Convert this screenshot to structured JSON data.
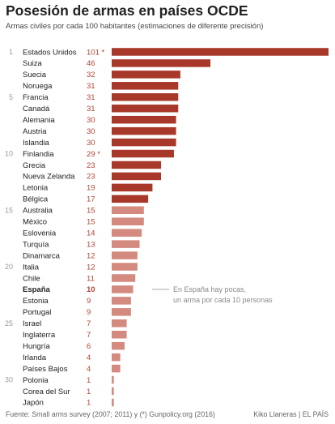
{
  "header": {
    "title": "Posesión de armas en países OCDE",
    "subtitle": "Armas civiles por cada 100 habitantes (estimaciones de diferente precisión)"
  },
  "footer": {
    "source": "Fuente: Small arms survey (2007; 2011) y (*) Gunpolicy.org (2016)",
    "credit": "Kiko Llaneras  |  EL PAÍS"
  },
  "colors": {
    "dark_bar": "#a8392a",
    "light_bar": "#d48a7e",
    "value_text": "#b04535"
  },
  "chart_data": {
    "type": "bar",
    "orientation": "horizontal",
    "title": "Posesión de armas en países OCDE",
    "subtitle": "Armas civiles por cada 100 habitantes (estimaciones de diferente precisión)",
    "xlim": [
      0,
      101
    ],
    "grid": false,
    "rank_labels": [
      {
        "index": 0,
        "label": "1"
      },
      {
        "index": 4,
        "label": "5"
      },
      {
        "index": 9,
        "label": "10"
      },
      {
        "index": 14,
        "label": "15"
      },
      {
        "index": 19,
        "label": "20"
      },
      {
        "index": 24,
        "label": "25"
      },
      {
        "index": 29,
        "label": "30"
      }
    ],
    "categories": [
      "Estados Unidos",
      "Suiza",
      "Suecia",
      "Noruega",
      "Francia",
      "Canadá",
      "Alemania",
      "Austria",
      "Islandia",
      "Finlandia",
      "Grecia",
      "Nueva Zelanda",
      "Letonia",
      "Bélgica",
      "Australia",
      "México",
      "Eslovenia",
      "Turquía",
      "Dinamarca",
      "Italia",
      "Chile",
      "España",
      "Estonia",
      "Portugal",
      "Israel",
      "Inglaterra",
      "Hungría",
      "Irlanda",
      "Países Bajos",
      "Polonia",
      "Corea del Sur",
      "Japón"
    ],
    "values": [
      101,
      46,
      32,
      31,
      31,
      31,
      30,
      30,
      30,
      29,
      23,
      23,
      19,
      17,
      15,
      15,
      14,
      13,
      12,
      12,
      11,
      10,
      9,
      9,
      7,
      7,
      6,
      4,
      4,
      1,
      1,
      1
    ],
    "value_labels": [
      "101 *",
      "46",
      "32",
      "31",
      "31",
      "31",
      "30",
      "30",
      "30",
      "29 *",
      "23",
      "23",
      "19",
      "17",
      "15",
      "15",
      "14",
      "13",
      "12",
      "12",
      "11",
      "10",
      "9",
      "9",
      "7",
      "7",
      "6",
      "4",
      "4",
      "1",
      "1",
      "1"
    ],
    "highlight": "España",
    "annotation": {
      "target": "España",
      "lines": [
        "En España hay pocas,",
        "un arma por cada 10 personas"
      ]
    }
  }
}
